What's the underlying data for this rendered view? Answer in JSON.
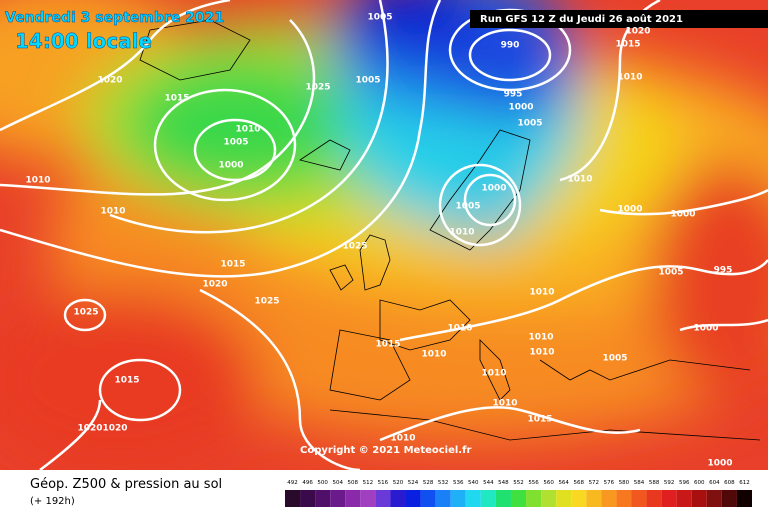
{
  "header": {
    "date": "Vendredi 3 septembre 2021",
    "time": "14:00 locale",
    "run": "Run GFS 12 Z du Jeudi 26 août 2021"
  },
  "map": {
    "isobar_labels": [
      1005,
      990,
      1015,
      1020,
      1020,
      1015,
      1025,
      1005,
      1010,
      1005,
      1000,
      995,
      1000,
      1005,
      1010,
      1010,
      1000,
      1005,
      1010,
      1000,
      1000,
      1010,
      1010,
      1025,
      1015,
      1020,
      1025,
      1025,
      1005,
      995,
      1010,
      1010,
      1010,
      1010,
      1015,
      1010,
      1010,
      1000,
      1005,
      1015,
      1010,
      1015,
      1010,
      1020,
      1020,
      1000
    ],
    "copyright": "Copyright © 2021 Meteociel.fr"
  },
  "footer": {
    "title": "Géop. Z500 & pression au sol",
    "lead_time": "(+ 192h)"
  },
  "scale": {
    "labels": [
      492,
      496,
      500,
      504,
      508,
      512,
      516,
      520,
      524,
      528,
      532,
      536,
      540,
      544,
      548,
      552,
      556,
      560,
      564,
      568,
      572,
      576,
      580,
      584,
      588,
      592,
      596,
      600,
      604,
      608,
      612
    ],
    "colors": [
      "#2a0a2a",
      "#3a0a4a",
      "#50106a",
      "#6a1a8a",
      "#8a2aaa",
      "#a040c0",
      "#6a3ad8",
      "#2a1ad0",
      "#0a20e0",
      "#1050f0",
      "#1a80f8",
      "#20b0f8",
      "#20d8f0",
      "#20e8c0",
      "#20e070",
      "#40e040",
      "#80e030",
      "#b0e030",
      "#e0e020",
      "#f8d820",
      "#f8b820",
      "#f89820",
      "#f87820",
      "#f05820",
      "#e83820",
      "#e02020",
      "#c81818",
      "#a81010",
      "#801010",
      "#500808",
      "#100000"
    ]
  }
}
